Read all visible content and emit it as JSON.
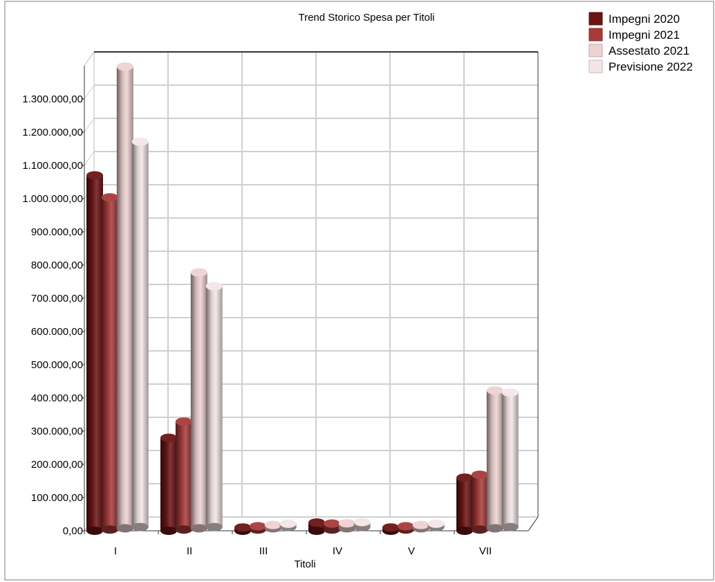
{
  "chart_data": {
    "type": "bar",
    "title": "Trend Storico Spesa per Titoli",
    "xlabel": "Titoli",
    "ylabel": "",
    "categories": [
      "I",
      "II",
      "III",
      "IV",
      "V",
      "VII"
    ],
    "ylim": [
      0,
      1400000
    ],
    "yticks": [
      0,
      100000,
      200000,
      300000,
      400000,
      500000,
      600000,
      700000,
      800000,
      900000,
      1000000,
      1100000,
      1200000,
      1300000
    ],
    "ytick_labels": [
      "0,00",
      "100.000,00",
      "200.000,00",
      "300.000,00",
      "400.000,00",
      "500.000,00",
      "600.000,00",
      "700.000,00",
      "800.000,00",
      "900.000,00",
      "1.000.000,00",
      "1.100.000,00",
      "1.200.000,00",
      "1.300.000,00"
    ],
    "grid": true,
    "legend_position": "top-right",
    "series": [
      {
        "name": "Impegni 2020",
        "color": "#6b1414",
        "values": [
          1070000,
          280000,
          10000,
          25000,
          10000,
          160000
        ]
      },
      {
        "name": "Impegni 2021",
        "color": "#a83a3a",
        "values": [
          1000000,
          325000,
          10000,
          18000,
          10000,
          165000
        ]
      },
      {
        "name": "Assestato 2021",
        "color": "#eed2d2",
        "values": [
          1390000,
          770000,
          10000,
          15000,
          10000,
          415000
        ]
      },
      {
        "name": "Previsione 2022",
        "color": "#f4e6e6",
        "values": [
          1160000,
          725000,
          10000,
          15000,
          10000,
          405000
        ]
      }
    ]
  }
}
